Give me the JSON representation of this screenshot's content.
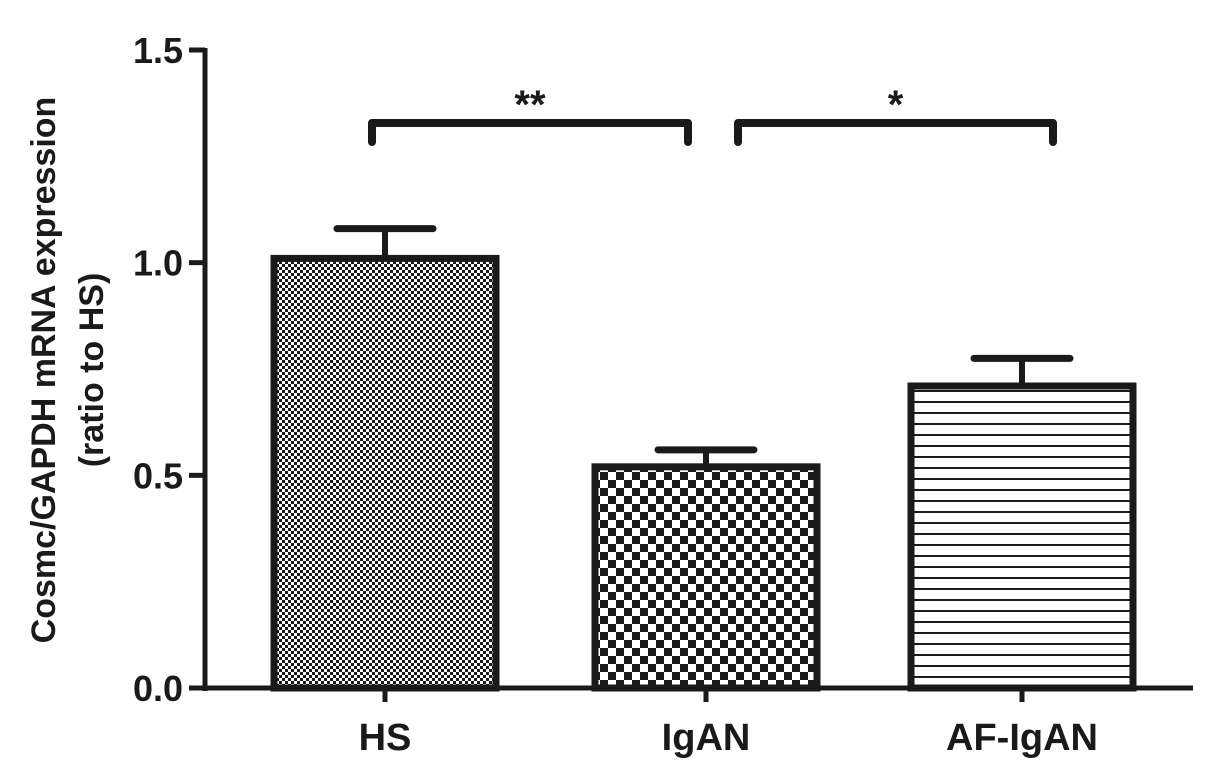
{
  "chart_data": {
    "type": "bar",
    "categories": [
      "HS",
      "IgAN",
      "AF-IgAN"
    ],
    "values": [
      1.01,
      0.52,
      0.71
    ],
    "errors": [
      0.07,
      0.04,
      0.065
    ],
    "patterns": [
      "fine-checker",
      "coarse-checker",
      "horizontal-lines"
    ],
    "ylabel_line1": "Cosmc/GAPDH mRNA expression",
    "ylabel_line2": "(ratio to HS)",
    "ylim": [
      0,
      1.5
    ],
    "yticks": [
      {
        "value": 0.0,
        "label": "0.0"
      },
      {
        "value": 0.5,
        "label": "0.5"
      },
      {
        "value": 1.0,
        "label": "1.0"
      },
      {
        "value": 1.5,
        "label": "1.5"
      }
    ],
    "significance": [
      {
        "from": 0,
        "to": 1,
        "label": "**"
      },
      {
        "from": 1,
        "to": 2,
        "label": "*"
      }
    ],
    "grid": false,
    "legend": "none"
  },
  "colors": {
    "ink": "#1a1a1a",
    "background": "#ffffff"
  }
}
